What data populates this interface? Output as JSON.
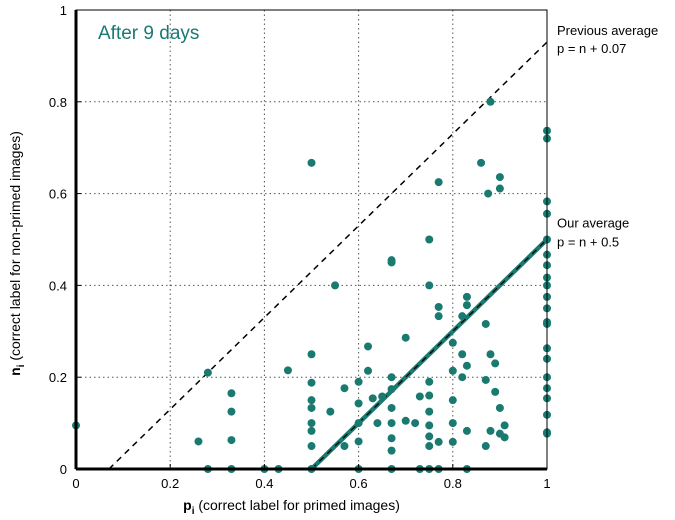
{
  "chart_data": {
    "type": "scatter",
    "title": "After 9 days",
    "xlabel_main": "p",
    "xlabel_sub": "i",
    "xlabel_rest": " (correct label for primed images)",
    "ylabel_main": "n",
    "ylabel_sub": "i",
    "ylabel_rest": " (correct label for non-primed images)",
    "xlim": [
      0,
      1
    ],
    "ylim": [
      0,
      1
    ],
    "grid": true,
    "xticks": [
      0,
      0.2,
      0.4,
      0.6,
      0.8,
      1
    ],
    "yticks": [
      0,
      0.2,
      0.4,
      0.6,
      0.8,
      1
    ],
    "xtick_labels": [
      "0",
      "0.2",
      "0.4",
      "0.6",
      "0.8",
      "1"
    ],
    "ytick_labels": [
      "0",
      "0.2",
      "0.4",
      "0.6",
      "0.8",
      "1"
    ],
    "colors": {
      "points": "#1a7a70",
      "ours_line": "#1a7a70",
      "title": "#1a7a70"
    },
    "lines": [
      {
        "label_line1": "Previous average",
        "label_line2": "p = n + 0.07",
        "style": "dashed",
        "offset": 0.07
      },
      {
        "label_line1": "Our average",
        "label_line2": "p = n + 0.5",
        "style": "solid-with-dash",
        "offset": 0.5
      }
    ],
    "points": [
      [
        0,
        0.095
      ],
      [
        0.26,
        0.06
      ],
      [
        0.28,
        0.21
      ],
      [
        0.28,
        0
      ],
      [
        0.33,
        0.165
      ],
      [
        0.33,
        0.125
      ],
      [
        0.33,
        0.063
      ],
      [
        0.33,
        0
      ],
      [
        0.4,
        0
      ],
      [
        0.43,
        0
      ],
      [
        0.45,
        0.215
      ],
      [
        0.5,
        0.667
      ],
      [
        0.5,
        0.25
      ],
      [
        0.5,
        0.188
      ],
      [
        0.5,
        0.15
      ],
      [
        0.5,
        0.133
      ],
      [
        0.5,
        0.1
      ],
      [
        0.5,
        0.083
      ],
      [
        0.5,
        0.05
      ],
      [
        0.5,
        0
      ],
      [
        0.54,
        0.125
      ],
      [
        0.55,
        0.4
      ],
      [
        0.57,
        0.176
      ],
      [
        0.57,
        0.05
      ],
      [
        0.6,
        0.19
      ],
      [
        0.6,
        0.143
      ],
      [
        0.6,
        0.1
      ],
      [
        0.6,
        0.06
      ],
      [
        0.6,
        0
      ],
      [
        0.62,
        0.267
      ],
      [
        0.62,
        0.214
      ],
      [
        0.63,
        0.154
      ],
      [
        0.64,
        0.1
      ],
      [
        0.65,
        0.158
      ],
      [
        0.67,
        0.455
      ],
      [
        0.67,
        0.45
      ],
      [
        0.67,
        0.2
      ],
      [
        0.67,
        0.174
      ],
      [
        0.67,
        0.133
      ],
      [
        0.67,
        0.1
      ],
      [
        0.67,
        0.067
      ],
      [
        0.67,
        0.04
      ],
      [
        0.67,
        0
      ],
      [
        0.7,
        0.286
      ],
      [
        0.7,
        0.105
      ],
      [
        0.72,
        0.1
      ],
      [
        0.73,
        0.158
      ],
      [
        0.73,
        0
      ],
      [
        0.75,
        0.5
      ],
      [
        0.75,
        0.4
      ],
      [
        0.75,
        0.19
      ],
      [
        0.75,
        0.16
      ],
      [
        0.75,
        0.125
      ],
      [
        0.75,
        0.095
      ],
      [
        0.75,
        0.071
      ],
      [
        0.75,
        0.05
      ],
      [
        0.75,
        0
      ],
      [
        0.77,
        0.625
      ],
      [
        0.77,
        0.353
      ],
      [
        0.77,
        0.333
      ],
      [
        0.77,
        0.059
      ],
      [
        0.77,
        0
      ],
      [
        0.8,
        0.275
      ],
      [
        0.8,
        0.214
      ],
      [
        0.8,
        0.15
      ],
      [
        0.8,
        0.1
      ],
      [
        0.8,
        0.059
      ],
      [
        0.82,
        0.333
      ],
      [
        0.82,
        0.25
      ],
      [
        0.82,
        0.2
      ],
      [
        0.83,
        0.375
      ],
      [
        0.83,
        0.357
      ],
      [
        0.83,
        0.225
      ],
      [
        0.83,
        0.083
      ],
      [
        0.83,
        0
      ],
      [
        0.86,
        0.667
      ],
      [
        0.87,
        0.316
      ],
      [
        0.87,
        0.194
      ],
      [
        0.87,
        0.05
      ],
      [
        0.875,
        0.6
      ],
      [
        0.88,
        0.8
      ],
      [
        0.88,
        0.25
      ],
      [
        0.88,
        0.083
      ],
      [
        0.89,
        0.23
      ],
      [
        0.89,
        0.168
      ],
      [
        0.9,
        0.636
      ],
      [
        0.9,
        0.611
      ],
      [
        0.9,
        0.133
      ],
      [
        0.9,
        0.077
      ],
      [
        0.91,
        0.095
      ],
      [
        0.91,
        0.069
      ],
      [
        1,
        0.737
      ],
      [
        1,
        0.72
      ],
      [
        1,
        0.583
      ],
      [
        1,
        0.556
      ],
      [
        1,
        0.5
      ],
      [
        1,
        0.467
      ],
      [
        1,
        0.444
      ],
      [
        1,
        0.417
      ],
      [
        1,
        0.4
      ],
      [
        1,
        0.375
      ],
      [
        1,
        0.35
      ],
      [
        1,
        0.32
      ],
      [
        1,
        0.316
      ],
      [
        1,
        0.263
      ],
      [
        1,
        0.24
      ],
      [
        1,
        0.2
      ],
      [
        1,
        0.176
      ],
      [
        1,
        0.154
      ],
      [
        1,
        0.118
      ],
      [
        1,
        0.08
      ],
      [
        1,
        0.077
      ]
    ]
  }
}
